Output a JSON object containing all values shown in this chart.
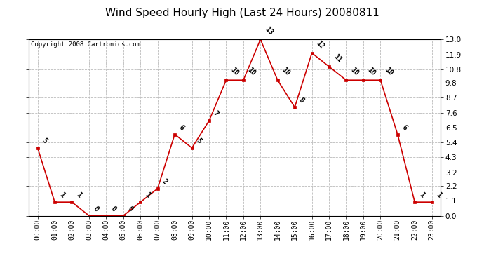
{
  "title": "Wind Speed Hourly High (Last 24 Hours) 20080811",
  "copyright": "Copyright 2008 Cartronics.com",
  "hours": [
    "00:00",
    "01:00",
    "02:00",
    "03:00",
    "04:00",
    "05:00",
    "06:00",
    "07:00",
    "08:00",
    "09:00",
    "10:00",
    "11:00",
    "12:00",
    "13:00",
    "14:00",
    "15:00",
    "16:00",
    "17:00",
    "18:00",
    "19:00",
    "20:00",
    "21:00",
    "22:00",
    "23:00"
  ],
  "values": [
    5,
    1,
    1,
    0,
    0,
    0,
    1,
    2,
    6,
    5,
    7,
    10,
    10,
    13,
    10,
    8,
    12,
    11,
    10,
    10,
    10,
    6,
    1,
    1
  ],
  "ylim": [
    0.0,
    13.0
  ],
  "yticks": [
    0.0,
    1.1,
    2.2,
    3.2,
    4.3,
    5.4,
    6.5,
    7.6,
    8.7,
    9.8,
    10.8,
    11.9,
    13.0
  ],
  "line_color": "#cc0000",
  "marker_color": "#cc0000",
  "bg_color": "#ffffff",
  "grid_color": "#bbbbbb",
  "title_fontsize": 11,
  "label_fontsize": 7,
  "copyright_fontsize": 6.5,
  "annotation_fontsize": 7
}
